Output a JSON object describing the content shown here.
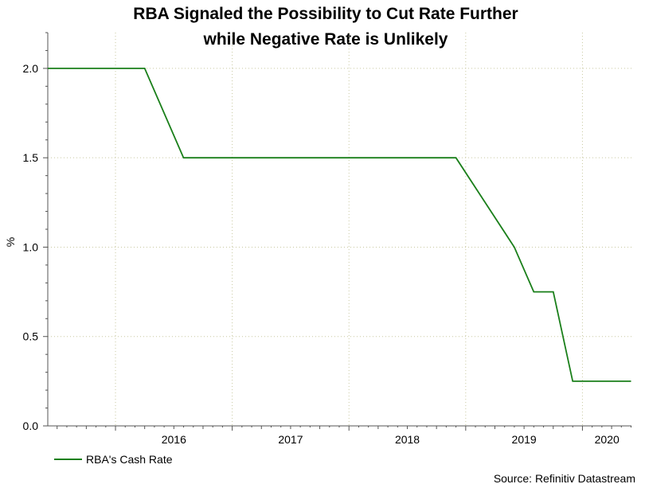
{
  "chart_data": {
    "type": "line",
    "title": "RBA Signaled the Possibility to Cut Rate Further",
    "subtitle": "while Negative Rate is Unlikely",
    "ylabel": "%",
    "xlabel": "",
    "ylim": [
      0,
      2.2
    ],
    "xlim": [
      2015.42,
      2020.42
    ],
    "y_ticks": [
      0.0,
      0.5,
      1.0,
      1.5,
      2.0
    ],
    "y_tick_labels": [
      "0.0",
      "0.5",
      "1.0",
      "1.5",
      "2.0"
    ],
    "x_tick_labels": [
      "2016",
      "2017",
      "2018",
      "2019",
      "2020"
    ],
    "x_tick_positions": [
      2016.0,
      2017.0,
      2018.0,
      2019.0,
      2020.0
    ],
    "grid": true,
    "legend_placement": "bottom-left",
    "series": [
      {
        "name": "RBA's Cash Rate",
        "color": "#1a7f1a",
        "x": [
          "2015-06",
          "2016-04",
          "2016-08",
          "2018-12",
          "2019-06",
          "2019-08",
          "2019-10",
          "2019-12",
          "2020-05",
          "2020-06"
        ],
        "values": [
          2.0,
          2.0,
          1.5,
          1.5,
          1.0,
          0.75,
          0.75,
          0.25,
          0.25,
          0.25
        ]
      }
    ],
    "source": "Source: Refinitiv Datastream"
  }
}
